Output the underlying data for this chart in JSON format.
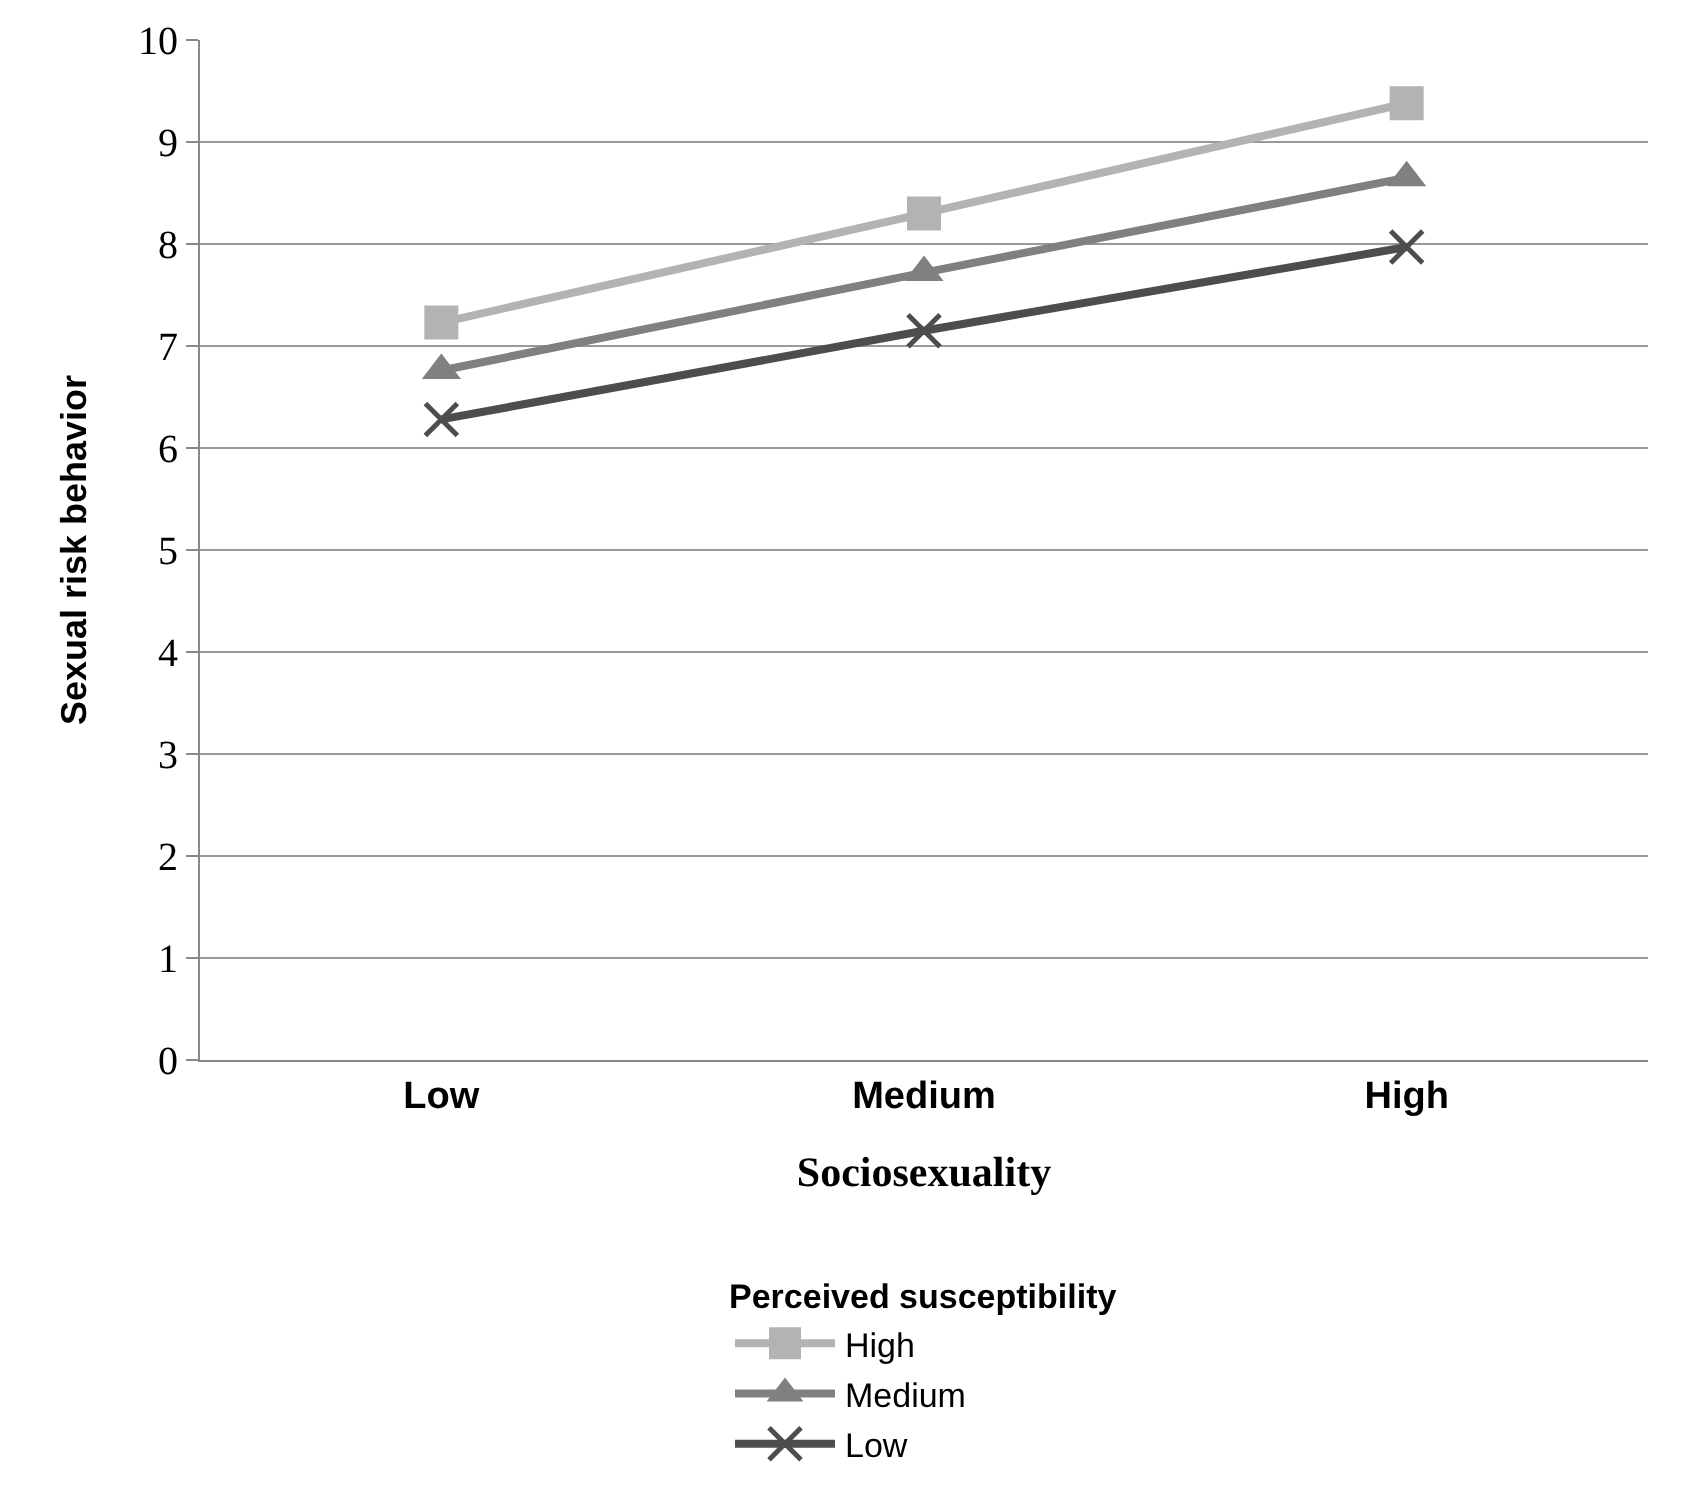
{
  "chart_data": {
    "type": "line",
    "xlabel": "Sociosexuality",
    "ylabel": "Sexual risk behavior",
    "legend_title": "Perceived susceptibility",
    "categories": [
      "Low",
      "Medium",
      "High"
    ],
    "ylim": [
      0,
      10
    ],
    "yticks": [
      0,
      1,
      2,
      3,
      4,
      5,
      6,
      7,
      8,
      9,
      10
    ],
    "grid": "y",
    "legend": "bottom",
    "line_style": "solid",
    "series": [
      {
        "name": "High",
        "color": "#b3b3b3",
        "marker": "square",
        "values": [
          7.23,
          8.3,
          9.38
        ]
      },
      {
        "name": "Medium",
        "color": "#808080",
        "marker": "triangle",
        "values": [
          6.76,
          7.72,
          8.65
        ]
      },
      {
        "name": "Low",
        "color": "#4d4d4d",
        "marker": "cross",
        "values": [
          6.28,
          7.15,
          7.97
        ]
      }
    ]
  }
}
